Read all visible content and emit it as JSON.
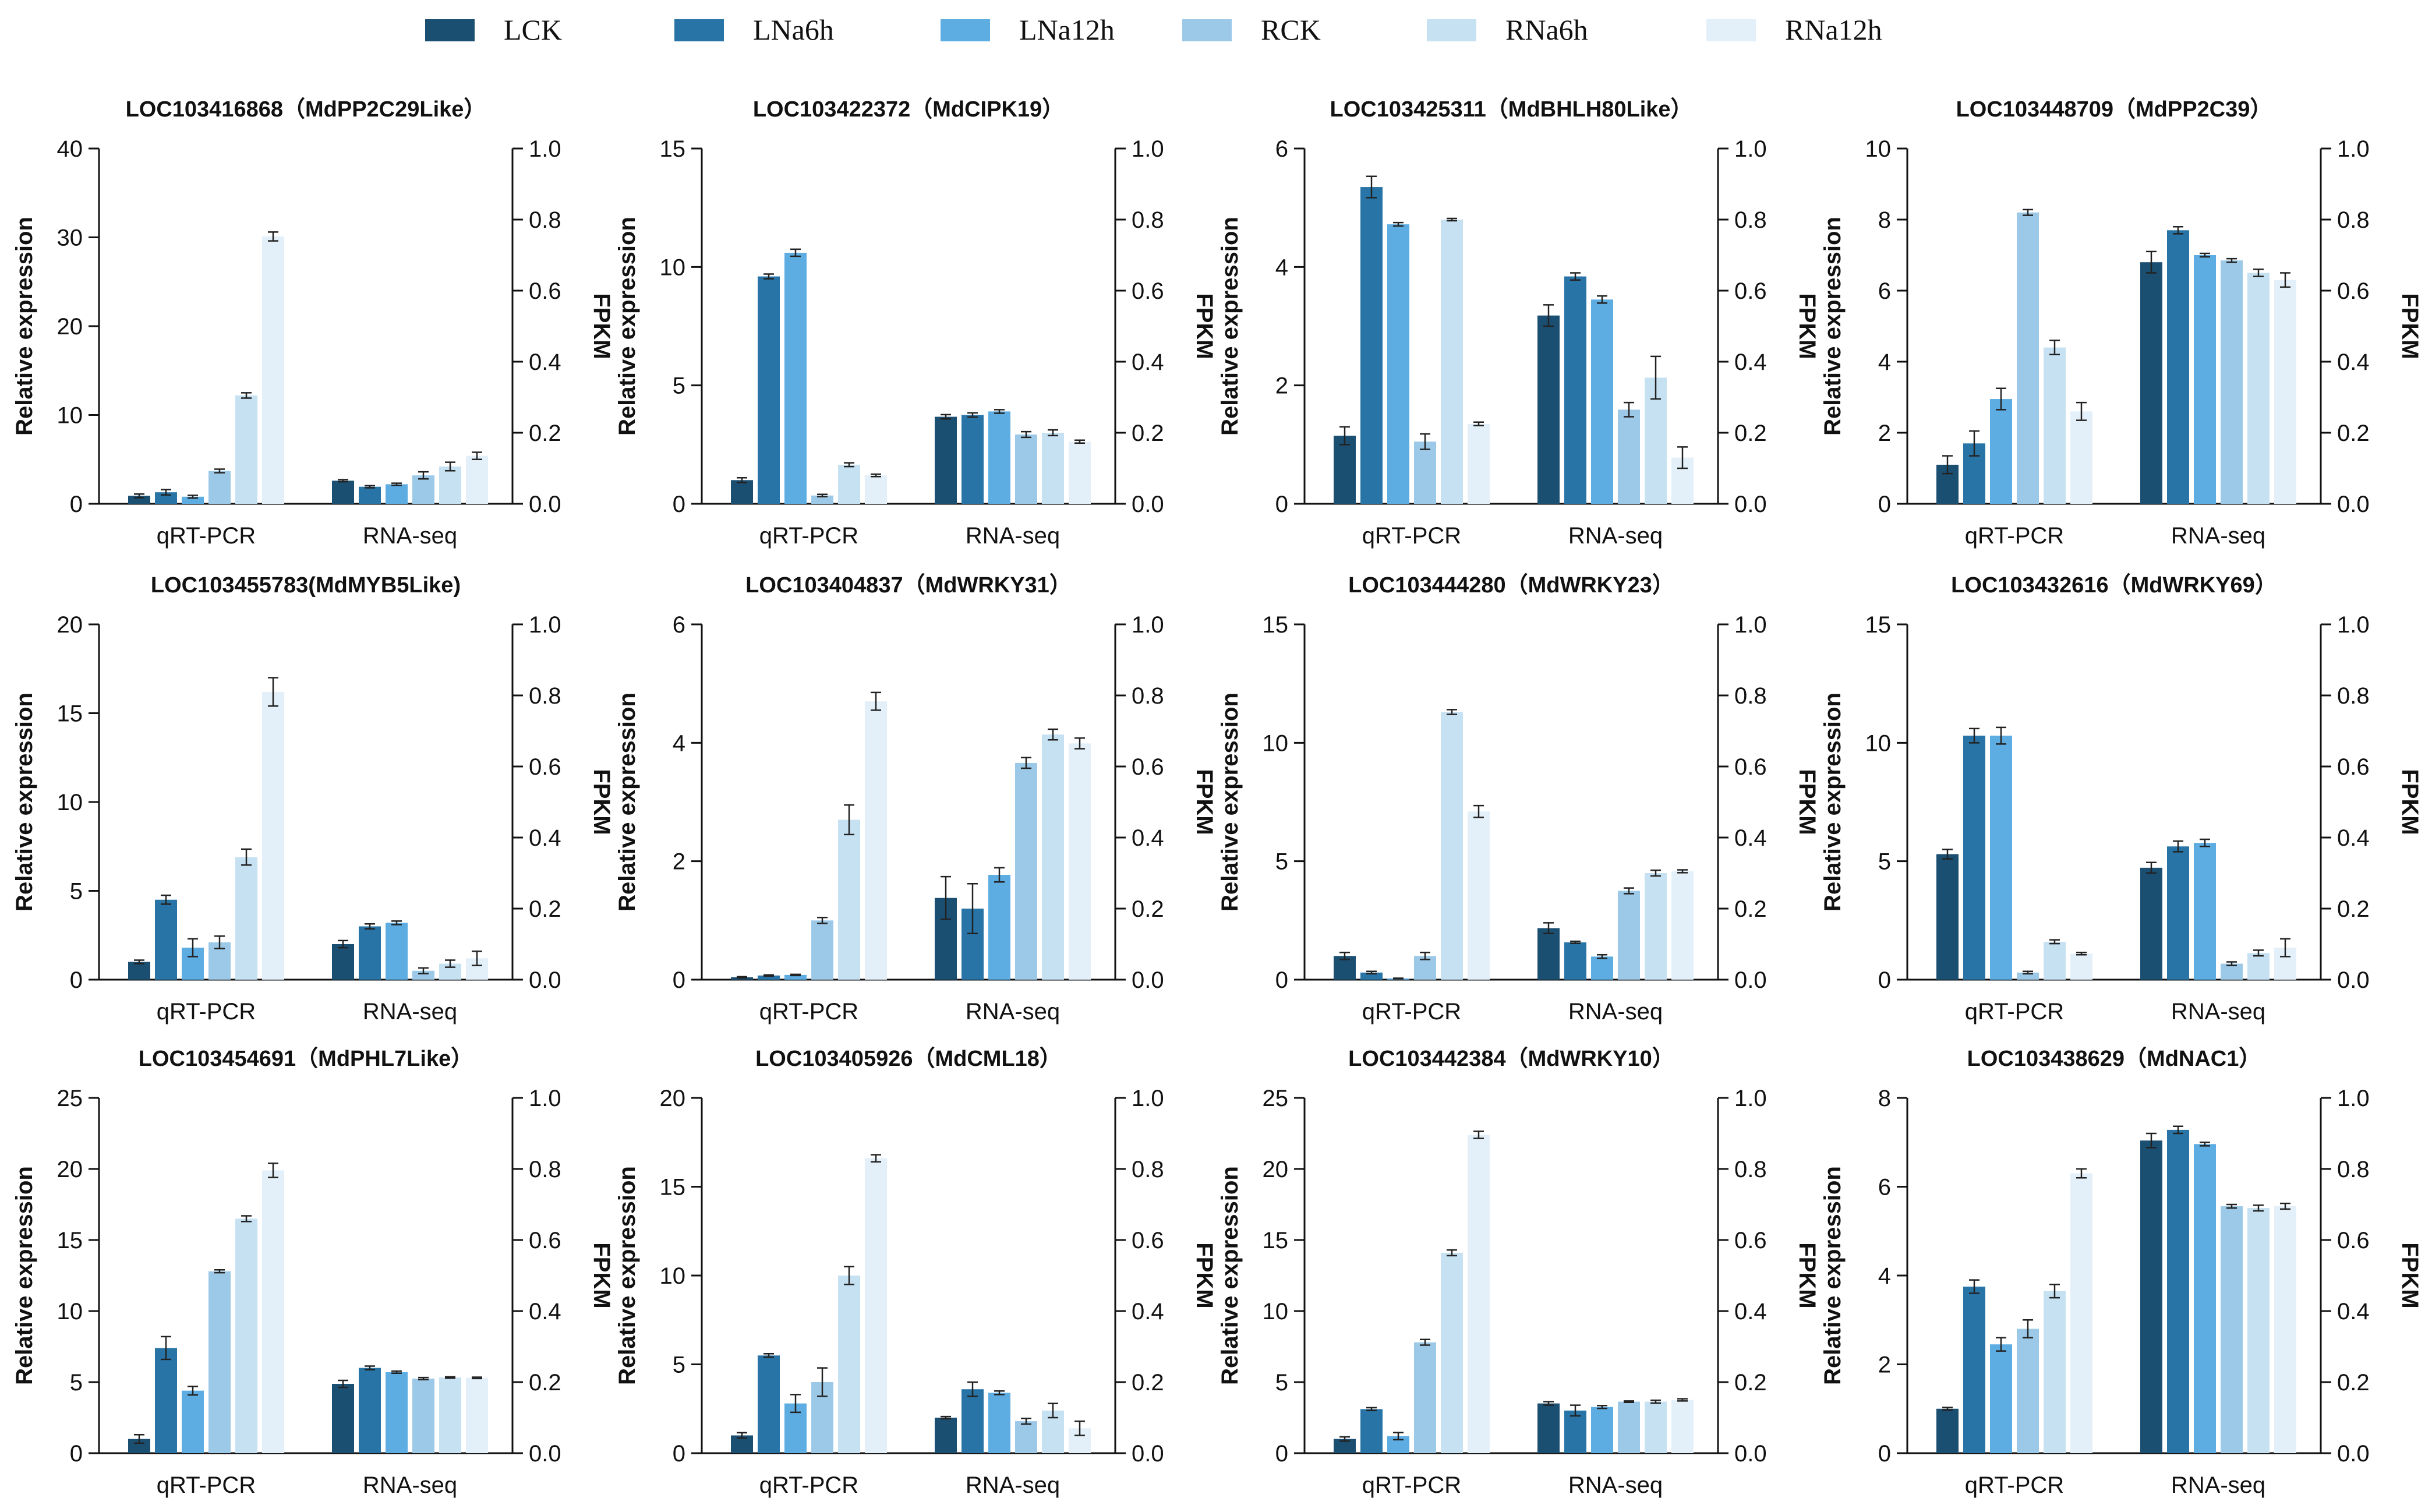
{
  "legend": [
    {
      "label": "LCK",
      "color": "#1b4f72"
    },
    {
      "label": "LNa6h",
      "color": "#2874a6"
    },
    {
      "label": "LNa12h",
      "color": "#5dade2"
    },
    {
      "label": "RCK",
      "color": "#9dc9e8"
    },
    {
      "label": "RNa6h",
      "color": "#c6e1f2"
    },
    {
      "label": "RNa12h",
      "color": "#e3f0f9"
    }
  ],
  "chart_data": [
    {
      "type": "bar",
      "title": "LOC103416868（MdPP2C29Like）",
      "categories": [
        "qRT-PCR",
        "RNA-seq"
      ],
      "ylabel": "Relative expression",
      "y2label": "FPKM",
      "ylim": [
        0,
        40
      ],
      "yticks": [
        0,
        10,
        20,
        30,
        40
      ],
      "y2lim": [
        0,
        1.0
      ],
      "y2ticks": [
        "0.0",
        "0.2",
        "0.4",
        "0.6",
        "0.8",
        "1.0"
      ],
      "series": [
        {
          "name": "LCK",
          "values": [
            0.9,
            0.065
          ],
          "err": [
            0.2,
            0.003
          ]
        },
        {
          "name": "LNa6h",
          "values": [
            1.3,
            0.048
          ],
          "err": [
            0.3,
            0.003
          ]
        },
        {
          "name": "LNa12h",
          "values": [
            0.8,
            0.055
          ],
          "err": [
            0.15,
            0.003
          ]
        },
        {
          "name": "RCK",
          "values": [
            3.7,
            0.08
          ],
          "err": [
            0.2,
            0.01
          ]
        },
        {
          "name": "RNa6h",
          "values": [
            12.2,
            0.105
          ],
          "err": [
            0.3,
            0.012
          ]
        },
        {
          "name": "RNa12h",
          "values": [
            30.1,
            0.135
          ],
          "err": [
            0.5,
            0.01
          ]
        }
      ]
    },
    {
      "type": "bar",
      "title": "LOC103422372（MdCIPK19）",
      "categories": [
        "qRT-PCR",
        "RNA-seq"
      ],
      "ylabel": "Relative expression",
      "y2label": "FPKM",
      "ylim": [
        0,
        15
      ],
      "yticks": [
        0,
        5,
        10,
        15
      ],
      "y2lim": [
        0,
        1.0
      ],
      "y2ticks": [
        "0.0",
        "0.2",
        "0.4",
        "0.6",
        "0.8",
        "1.0"
      ],
      "series": [
        {
          "name": "LCK",
          "values": [
            1.0,
            0.245
          ],
          "err": [
            0.1,
            0.006
          ]
        },
        {
          "name": "LNa6h",
          "values": [
            9.6,
            0.25
          ],
          "err": [
            0.1,
            0.006
          ]
        },
        {
          "name": "LNa12h",
          "values": [
            10.6,
            0.26
          ],
          "err": [
            0.15,
            0.005
          ]
        },
        {
          "name": "RCK",
          "values": [
            0.35,
            0.195
          ],
          "err": [
            0.05,
            0.008
          ]
        },
        {
          "name": "RNa6h",
          "values": [
            1.65,
            0.2
          ],
          "err": [
            0.08,
            0.008
          ]
        },
        {
          "name": "RNa12h",
          "values": [
            1.2,
            0.175
          ],
          "err": [
            0.05,
            0.004
          ]
        }
      ]
    },
    {
      "type": "bar",
      "title": "LOC103425311（MdBHLH80Like）",
      "categories": [
        "qRT-PCR",
        "RNA-seq"
      ],
      "ylabel": "Relative expression",
      "y2label": "FPKM",
      "ylim": [
        0,
        6
      ],
      "yticks": [
        0,
        2,
        4,
        6
      ],
      "y2lim": [
        0,
        1.0
      ],
      "y2ticks": [
        "0.0",
        "0.2",
        "0.4",
        "0.6",
        "0.8",
        "1.0"
      ],
      "series": [
        {
          "name": "LCK",
          "values": [
            1.15,
            0.53
          ],
          "err": [
            0.15,
            0.03
          ]
        },
        {
          "name": "LNa6h",
          "values": [
            5.35,
            0.64
          ],
          "err": [
            0.18,
            0.01
          ]
        },
        {
          "name": "LNa12h",
          "values": [
            4.72,
            0.575
          ],
          "err": [
            0.03,
            0.01
          ]
        },
        {
          "name": "RCK",
          "values": [
            1.05,
            0.265
          ],
          "err": [
            0.13,
            0.02
          ]
        },
        {
          "name": "RNa6h",
          "values": [
            4.8,
            0.355
          ],
          "err": [
            0.02,
            0.06
          ]
        },
        {
          "name": "RNa12h",
          "values": [
            1.35,
            0.13
          ],
          "err": [
            0.03,
            0.03
          ]
        }
      ]
    },
    {
      "type": "bar",
      "title": "LOC103448709（MdPP2C39）",
      "categories": [
        "qRT-PCR",
        "RNA-seq"
      ],
      "ylabel": "Relative expression",
      "y2label": "FPKM",
      "ylim": [
        0,
        10
      ],
      "yticks": [
        0,
        2,
        4,
        6,
        8,
        10
      ],
      "y2lim": [
        0,
        1.0
      ],
      "y2ticks": [
        "0.0",
        "0.2",
        "0.4",
        "0.6",
        "0.8",
        "1.0"
      ],
      "series": [
        {
          "name": "LCK",
          "values": [
            1.1,
            0.68
          ],
          "err": [
            0.25,
            0.03
          ]
        },
        {
          "name": "LNa6h",
          "values": [
            1.7,
            0.77
          ],
          "err": [
            0.35,
            0.01
          ]
        },
        {
          "name": "LNa12h",
          "values": [
            2.95,
            0.7
          ],
          "err": [
            0.3,
            0.005
          ]
        },
        {
          "name": "RCK",
          "values": [
            8.2,
            0.685
          ],
          "err": [
            0.08,
            0.005
          ]
        },
        {
          "name": "RNa6h",
          "values": [
            4.4,
            0.65
          ],
          "err": [
            0.2,
            0.01
          ]
        },
        {
          "name": "RNa12h",
          "values": [
            2.6,
            0.63
          ],
          "err": [
            0.25,
            0.02
          ]
        }
      ]
    },
    {
      "type": "bar",
      "title": "LOC103455783(MdMYB5Like)",
      "categories": [
        "qRT-PCR",
        "RNA-seq"
      ],
      "ylabel": "Relative expression",
      "y2label": "FPKM",
      "ylim": [
        0,
        20
      ],
      "yticks": [
        0,
        5,
        10,
        15,
        20
      ],
      "y2lim": [
        0,
        1.0
      ],
      "y2ticks": [
        "0.0",
        "0.2",
        "0.4",
        "0.6",
        "0.8",
        "1.0"
      ],
      "series": [
        {
          "name": "LCK",
          "values": [
            1.0,
            0.1
          ],
          "err": [
            0.1,
            0.01
          ]
        },
        {
          "name": "LNa6h",
          "values": [
            4.5,
            0.15
          ],
          "err": [
            0.25,
            0.007
          ]
        },
        {
          "name": "LNa12h",
          "values": [
            1.8,
            0.16
          ],
          "err": [
            0.5,
            0.005
          ]
        },
        {
          "name": "RCK",
          "values": [
            2.1,
            0.025
          ],
          "err": [
            0.35,
            0.008
          ]
        },
        {
          "name": "RNa6h",
          "values": [
            6.9,
            0.045
          ],
          "err": [
            0.45,
            0.01
          ]
        },
        {
          "name": "RNa12h",
          "values": [
            16.2,
            0.06
          ],
          "err": [
            0.8,
            0.02
          ]
        }
      ]
    },
    {
      "type": "bar",
      "title": "LOC103404837（MdWRKY31）",
      "categories": [
        "qRT-PCR",
        "RNA-seq"
      ],
      "ylabel": "Relative expression",
      "y2label": "FPKM",
      "ylim": [
        0,
        6
      ],
      "yticks": [
        0,
        2,
        4,
        6
      ],
      "y2lim": [
        0,
        1.0
      ],
      "y2ticks": [
        "0.0",
        "0.2",
        "0.4",
        "0.6",
        "0.8",
        "1.0"
      ],
      "series": [
        {
          "name": "LCK",
          "values": [
            0.04,
            0.23
          ],
          "err": [
            0.01,
            0.06
          ]
        },
        {
          "name": "LNa6h",
          "values": [
            0.07,
            0.2
          ],
          "err": [
            0.01,
            0.07
          ]
        },
        {
          "name": "LNa12h",
          "values": [
            0.08,
            0.295
          ],
          "err": [
            0.01,
            0.02
          ]
        },
        {
          "name": "RCK",
          "values": [
            1.0,
            0.61
          ],
          "err": [
            0.05,
            0.015
          ]
        },
        {
          "name": "RNa6h",
          "values": [
            2.7,
            0.69
          ],
          "err": [
            0.25,
            0.015
          ]
        },
        {
          "name": "RNa12h",
          "values": [
            4.7,
            0.665
          ],
          "err": [
            0.15,
            0.015
          ]
        }
      ]
    },
    {
      "type": "bar",
      "title": "LOC103444280（MdWRKY23）",
      "categories": [
        "qRT-PCR",
        "RNA-seq"
      ],
      "ylabel": "Relative expression",
      "y2label": "FPKM",
      "ylim": [
        0,
        15
      ],
      "yticks": [
        0,
        5,
        10,
        15
      ],
      "y2lim": [
        0,
        1.0
      ],
      "y2ticks": [
        "0.0",
        "0.2",
        "0.4",
        "0.6",
        "0.8",
        "1.0"
      ],
      "series": [
        {
          "name": "LCK",
          "values": [
            1.0,
            0.145
          ],
          "err": [
            0.15,
            0.015
          ]
        },
        {
          "name": "LNa6h",
          "values": [
            0.3,
            0.105
          ],
          "err": [
            0.05,
            0.003
          ]
        },
        {
          "name": "LNa12h",
          "values": [
            0.05,
            0.065
          ],
          "err": [
            0.01,
            0.005
          ]
        },
        {
          "name": "RCK",
          "values": [
            1.0,
            0.25
          ],
          "err": [
            0.15,
            0.008
          ]
        },
        {
          "name": "RNa6h",
          "values": [
            11.3,
            0.3
          ],
          "err": [
            0.1,
            0.008
          ]
        },
        {
          "name": "RNa12h",
          "values": [
            7.1,
            0.305
          ],
          "err": [
            0.25,
            0.004
          ]
        }
      ]
    },
    {
      "type": "bar",
      "title": "LOC103432616（MdWRKY69）",
      "categories": [
        "qRT-PCR",
        "RNA-seq"
      ],
      "ylabel": "Relative expression",
      "y2label": "FPKM",
      "ylim": [
        0,
        15
      ],
      "yticks": [
        0,
        5,
        10,
        15
      ],
      "y2lim": [
        0,
        1.0
      ],
      "y2ticks": [
        "0.0",
        "0.2",
        "0.4",
        "0.6",
        "0.8",
        "1.0"
      ],
      "series": [
        {
          "name": "LCK",
          "values": [
            5.3,
            0.315
          ],
          "err": [
            0.2,
            0.015
          ]
        },
        {
          "name": "LNa6h",
          "values": [
            10.3,
            0.375
          ],
          "err": [
            0.3,
            0.015
          ]
        },
        {
          "name": "LNa12h",
          "values": [
            10.3,
            0.385
          ],
          "err": [
            0.35,
            0.01
          ]
        },
        {
          "name": "RCK",
          "values": [
            0.3,
            0.045
          ],
          "err": [
            0.05,
            0.005
          ]
        },
        {
          "name": "RNa6h",
          "values": [
            1.6,
            0.075
          ],
          "err": [
            0.08,
            0.008
          ]
        },
        {
          "name": "RNa12h",
          "values": [
            1.1,
            0.09
          ],
          "err": [
            0.05,
            0.025
          ]
        }
      ]
    },
    {
      "type": "bar",
      "title": "LOC103454691（MdPHL7Like）",
      "categories": [
        "qRT-PCR",
        "RNA-seq"
      ],
      "ylabel": "Relative expression",
      "y2label": "FPKM",
      "ylim": [
        0,
        25
      ],
      "yticks": [
        0,
        5,
        10,
        15,
        20,
        25
      ],
      "y2lim": [
        0,
        1.0
      ],
      "y2ticks": [
        "0.0",
        "0.2",
        "0.4",
        "0.6",
        "0.8",
        "1.0"
      ],
      "series": [
        {
          "name": "LCK",
          "values": [
            1.0,
            0.195
          ],
          "err": [
            0.3,
            0.01
          ]
        },
        {
          "name": "LNa6h",
          "values": [
            7.4,
            0.24
          ],
          "err": [
            0.8,
            0.005
          ]
        },
        {
          "name": "LNa12h",
          "values": [
            4.4,
            0.228
          ],
          "err": [
            0.3,
            0.003
          ]
        },
        {
          "name": "RCK",
          "values": [
            12.8,
            0.21
          ],
          "err": [
            0.1,
            0.003
          ]
        },
        {
          "name": "RNa6h",
          "values": [
            16.5,
            0.213
          ],
          "err": [
            0.2,
            0.002
          ]
        },
        {
          "name": "RNa12h",
          "values": [
            19.9,
            0.212
          ],
          "err": [
            0.5,
            0.002
          ]
        }
      ]
    },
    {
      "type": "bar",
      "title": "LOC103405926（MdCML18）",
      "categories": [
        "qRT-PCR",
        "RNA-seq"
      ],
      "ylabel": "Relative expression",
      "y2label": "FPKM",
      "ylim": [
        0,
        20
      ],
      "yticks": [
        0,
        5,
        10,
        15,
        20
      ],
      "y2lim": [
        0,
        1.0
      ],
      "y2ticks": [
        "0.0",
        "0.2",
        "0.4",
        "0.6",
        "0.8",
        "1.0"
      ],
      "series": [
        {
          "name": "LCK",
          "values": [
            1.0,
            0.1
          ],
          "err": [
            0.15,
            0.003
          ]
        },
        {
          "name": "LNa6h",
          "values": [
            5.5,
            0.18
          ],
          "err": [
            0.1,
            0.02
          ]
        },
        {
          "name": "LNa12h",
          "values": [
            2.8,
            0.17
          ],
          "err": [
            0.5,
            0.005
          ]
        },
        {
          "name": "RCK",
          "values": [
            4.0,
            0.09
          ],
          "err": [
            0.8,
            0.008
          ]
        },
        {
          "name": "RNa6h",
          "values": [
            10.0,
            0.12
          ],
          "err": [
            0.5,
            0.02
          ]
        },
        {
          "name": "RNa12h",
          "values": [
            16.6,
            0.07
          ],
          "err": [
            0.2,
            0.02
          ]
        }
      ]
    },
    {
      "type": "bar",
      "title": "LOC103442384（MdWRKY10）",
      "categories": [
        "qRT-PCR",
        "RNA-seq"
      ],
      "ylabel": "Relative expression",
      "y2label": "FPKM",
      "ylim": [
        0,
        25
      ],
      "yticks": [
        0,
        5,
        10,
        15,
        20,
        25
      ],
      "y2lim": [
        0,
        1.0
      ],
      "y2ticks": [
        "0.0",
        "0.2",
        "0.4",
        "0.6",
        "0.8",
        "1.0"
      ],
      "series": [
        {
          "name": "LCK",
          "values": [
            1.0,
            0.14
          ],
          "err": [
            0.15,
            0.005
          ]
        },
        {
          "name": "LNa6h",
          "values": [
            3.1,
            0.12
          ],
          "err": [
            0.1,
            0.015
          ]
        },
        {
          "name": "LNa12h",
          "values": [
            1.2,
            0.13
          ],
          "err": [
            0.25,
            0.004
          ]
        },
        {
          "name": "RCK",
          "values": [
            7.8,
            0.145
          ],
          "err": [
            0.2,
            0.002
          ]
        },
        {
          "name": "RNa6h",
          "values": [
            14.1,
            0.145
          ],
          "err": [
            0.2,
            0.004
          ]
        },
        {
          "name": "RNa12h",
          "values": [
            22.4,
            0.15
          ],
          "err": [
            0.25,
            0.003
          ]
        }
      ]
    },
    {
      "type": "bar",
      "title": "LOC103438629（MdNAC1）",
      "categories": [
        "qRT-PCR",
        "RNA-seq"
      ],
      "ylabel": "Relative expression",
      "y2label": "FPKM",
      "ylim": [
        0,
        8
      ],
      "yticks": [
        0,
        2,
        4,
        6,
        8
      ],
      "y2lim": [
        0,
        1.0
      ],
      "y2ticks": [
        "0.0",
        "0.2",
        "0.4",
        "0.6",
        "0.8",
        "1.0"
      ],
      "series": [
        {
          "name": "LCK",
          "values": [
            1.0,
            0.88
          ],
          "err": [
            0.03,
            0.02
          ]
        },
        {
          "name": "LNa6h",
          "values": [
            3.75,
            0.91
          ],
          "err": [
            0.15,
            0.01
          ]
        },
        {
          "name": "LNa12h",
          "values": [
            2.45,
            0.87
          ],
          "err": [
            0.15,
            0.005
          ]
        },
        {
          "name": "RCK",
          "values": [
            2.8,
            0.695
          ],
          "err": [
            0.2,
            0.005
          ]
        },
        {
          "name": "RNa6h",
          "values": [
            3.65,
            0.69
          ],
          "err": [
            0.15,
            0.008
          ]
        },
        {
          "name": "RNa12h",
          "values": [
            6.3,
            0.695
          ],
          "err": [
            0.1,
            0.008
          ]
        }
      ]
    }
  ]
}
